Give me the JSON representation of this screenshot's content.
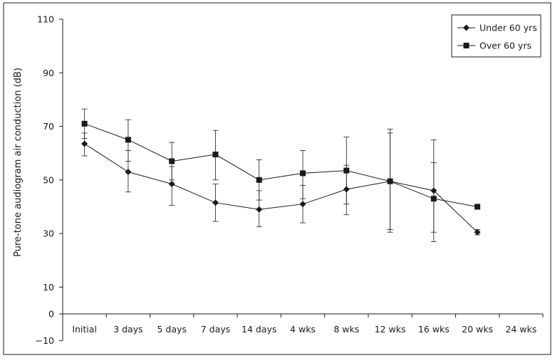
{
  "chart_data": {
    "type": "line",
    "ylabel": "Pure-tone audiogram air conduction (dB)",
    "xlabel": "",
    "categories": [
      "Initial",
      "3 days",
      "5 days",
      "7 days",
      "14 days",
      "4 wks",
      "8 wks",
      "12 wks",
      "16 wks",
      "20 wks",
      "24 wks"
    ],
    "y_ticks": [
      -10,
      0,
      10,
      30,
      50,
      70,
      90,
      110
    ],
    "ylim": [
      -10,
      110
    ],
    "grid": false,
    "legend": "top-right",
    "series": [
      {
        "name": "Under 60 yrs",
        "marker": "diamond",
        "values": [
          63.5,
          53,
          48.5,
          41.5,
          39,
          41,
          46.5,
          49.5,
          46,
          30.5,
          null
        ],
        "err_low": [
          59,
          45.5,
          40.5,
          34.5,
          32.5,
          34,
          37,
          31.5,
          30.5,
          29.5,
          null
        ],
        "err_high": [
          67.5,
          61,
          55,
          48.5,
          46,
          48,
          55.5,
          67.5,
          56.5,
          31.5,
          null
        ]
      },
      {
        "name": "Over 60 yrs",
        "marker": "square",
        "values": [
          71,
          65,
          57,
          59.5,
          50,
          52.5,
          53.5,
          49.5,
          43,
          40,
          null
        ],
        "err_low": [
          65.5,
          57,
          50,
          50,
          42.5,
          43,
          41,
          30.5,
          27,
          40,
          null
        ],
        "err_high": [
          76.5,
          72.5,
          64,
          68.5,
          57.5,
          61,
          66,
          69,
          65,
          40,
          null
        ]
      }
    ],
    "colors": {
      "line": "#1a1a1a",
      "frame": "#1a1a1a"
    }
  }
}
